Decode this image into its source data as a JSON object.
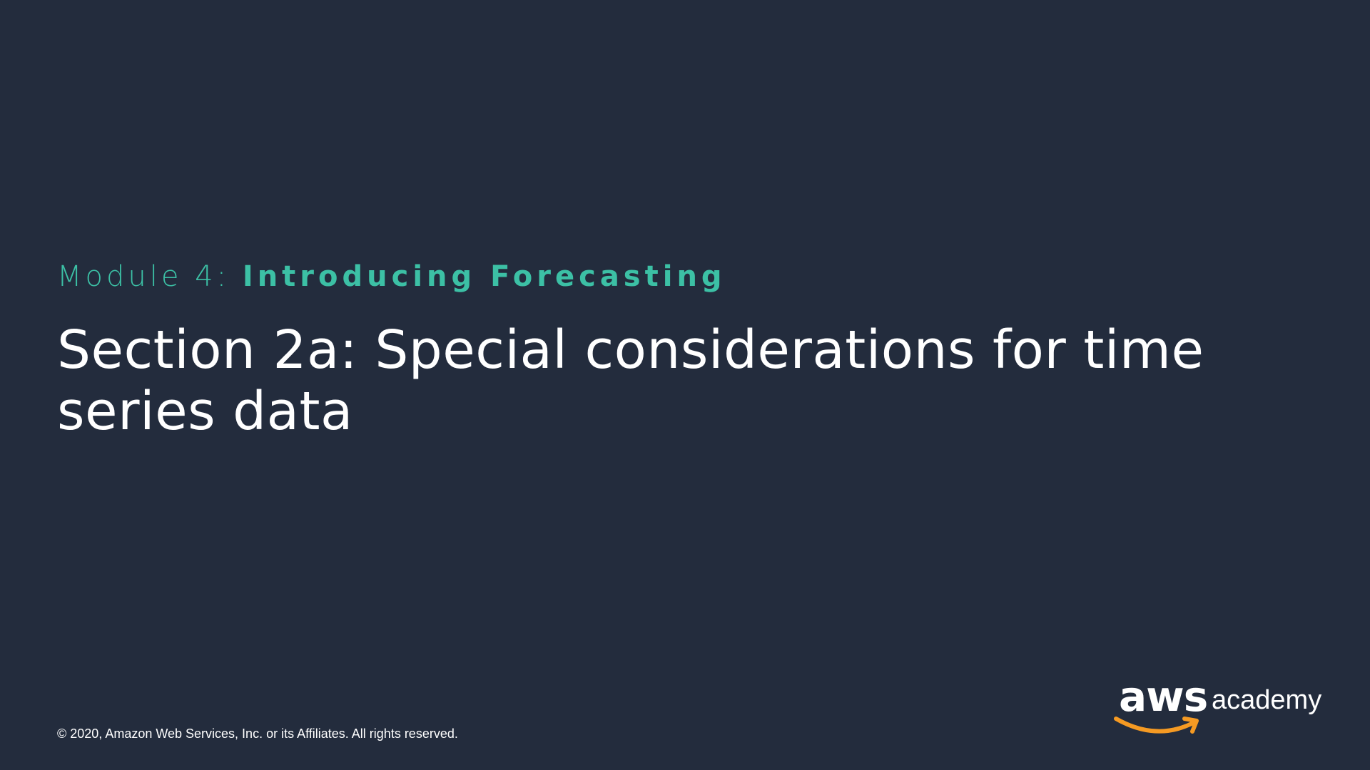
{
  "slide": {
    "module_prefix": "Module 4: ",
    "module_name": "Introducing Forecasting",
    "section_title": "Section 2a: Special considerations for time series data",
    "copyright": "© 2020, Amazon Web Services, Inc. or its Affiliates. All rights reserved."
  },
  "logo": {
    "brand": "aws",
    "suffix": "academy",
    "smile_icon": "amazon-smile-arrow-icon"
  },
  "colors": {
    "background": "#232c3d",
    "accent": "#3cc0a5",
    "text": "#ffffff",
    "smile": "#f59a23"
  }
}
